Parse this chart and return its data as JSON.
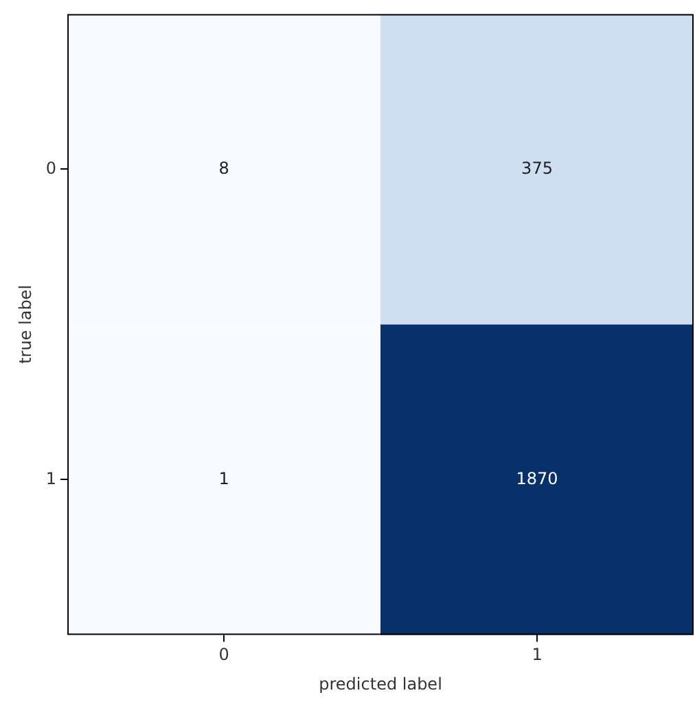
{
  "chart_data": {
    "type": "heatmap",
    "xlabel": "predicted label",
    "ylabel": "true label",
    "categories": [
      "0",
      "1"
    ],
    "y_categories": [
      "0",
      "1"
    ],
    "cells": [
      [
        8,
        375
      ],
      [
        1,
        1870
      ]
    ],
    "colors": [
      [
        "#f7fbff",
        "#cddff1"
      ],
      [
        "#f7fbff",
        "#08306b"
      ]
    ],
    "data_labels": true,
    "grid": false,
    "legend": false
  }
}
